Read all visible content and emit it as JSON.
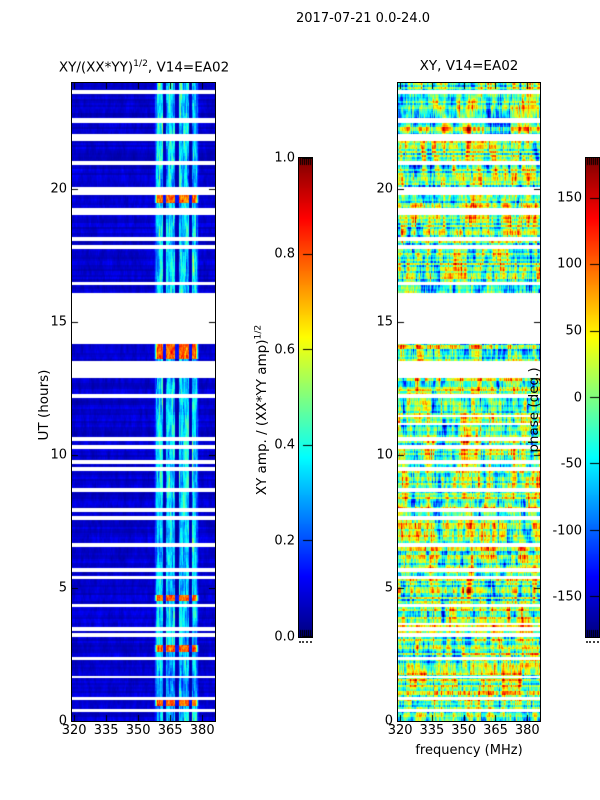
{
  "figure": {
    "title": "2017-07-21 0.0-24.0",
    "background_color": "#ffffff",
    "text_color": "#000000"
  },
  "chart_data": [
    {
      "type": "heatmap",
      "panel": "left",
      "title": {
        "prefix": "XY/(XX*YY)",
        "sup": "1/2",
        "suffix": ", V14=EA02"
      },
      "ylabel": "UT (hours)",
      "xlabel": "",
      "x_range_mhz": [
        319,
        386
      ],
      "x_ticks": [
        320,
        335,
        350,
        365,
        380
      ],
      "y_range_hours": [
        0,
        24
      ],
      "y_ticks": [
        0,
        5,
        10,
        15,
        20
      ],
      "colormap": "jet",
      "grid": false,
      "colorbar": {
        "label": {
          "prefix": "XY amp. / (XX*YY amp)",
          "sup": "1/2",
          "suffix": ""
        },
        "range": [
          0.0,
          1.0
        ],
        "ticks": [
          0.0,
          0.2,
          0.4,
          0.6,
          0.8,
          1.0
        ],
        "tick_format": 1
      },
      "description": "Normalized XY cross-hand amplitude vs frequency and UT; mostly low (~0.0-0.1, dark blue) with an enhanced RFI band near 358-378 MHz and white rows where data are missing.",
      "background_level": 0.05,
      "active_band_mhz": [
        357.5,
        378.5
      ],
      "band_notch_freqs_mhz": [
        362.4,
        368.3,
        374.6
      ],
      "enhanced_rows_ut": [
        [
          19.5,
          19.78
        ],
        [
          13.6,
          14.2
        ],
        [
          4.5,
          4.75
        ],
        [
          2.6,
          2.85
        ],
        [
          0.55,
          0.8
        ]
      ],
      "missing_time_gaps_ut": [
        [
          23.6,
          23.72
        ],
        [
          22.5,
          22.7
        ],
        [
          21.8,
          22.1
        ],
        [
          20.9,
          21.05
        ],
        [
          19.8,
          20.1
        ],
        [
          19.05,
          19.3
        ],
        [
          18.05,
          18.2
        ],
        [
          17.75,
          17.9
        ],
        [
          16.4,
          16.5
        ],
        [
          14.2,
          16.1
        ],
        [
          12.9,
          13.55
        ],
        [
          12.15,
          12.3
        ],
        [
          10.55,
          10.7
        ],
        [
          10.25,
          10.4
        ],
        [
          9.65,
          9.8
        ],
        [
          9.4,
          9.55
        ],
        [
          8.6,
          8.75
        ],
        [
          7.85,
          8.0
        ],
        [
          7.55,
          7.7
        ],
        [
          6.55,
          6.7
        ],
        [
          5.6,
          5.75
        ],
        [
          5.35,
          5.45
        ],
        [
          4.3,
          4.4
        ],
        [
          3.4,
          3.55
        ],
        [
          3.15,
          3.3
        ],
        [
          2.3,
          2.4
        ],
        [
          1.6,
          1.7
        ],
        [
          0.8,
          0.9
        ],
        [
          0.35,
          0.45
        ]
      ]
    },
    {
      "type": "heatmap",
      "panel": "right",
      "title": {
        "prefix": "XY, V14=EA02",
        "sup": "",
        "suffix": ""
      },
      "ylabel": "",
      "xlabel": "frequency (MHz)",
      "x_range_mhz": [
        319,
        386
      ],
      "x_ticks": [
        320,
        335,
        350,
        365,
        380
      ],
      "y_range_hours": [
        0,
        24
      ],
      "y_ticks": [
        0,
        5,
        10,
        15,
        20
      ],
      "colormap": "jet",
      "grid": false,
      "colorbar": {
        "label": {
          "prefix": "phase (deg.)",
          "sup": "",
          "suffix": ""
        },
        "range": [
          -180,
          180
        ],
        "ticks": [
          -150,
          -100,
          -50,
          0,
          50,
          100,
          150
        ],
        "tick_format": 0
      },
      "description": "XY cross-hand phase (degrees) vs frequency and UT; strongly mottled full-range phase structure across the whole band with the same missing-time white rows plus extra thin dropouts.",
      "missing_time_gaps_ut": [
        [
          23.6,
          23.72
        ],
        [
          22.5,
          22.7
        ],
        [
          21.8,
          22.1
        ],
        [
          20.9,
          21.05
        ],
        [
          19.8,
          20.1
        ],
        [
          19.05,
          19.3
        ],
        [
          18.05,
          18.2
        ],
        [
          17.75,
          17.9
        ],
        [
          16.4,
          16.5
        ],
        [
          14.2,
          16.1
        ],
        [
          12.9,
          13.55
        ],
        [
          12.15,
          12.3
        ],
        [
          10.55,
          10.7
        ],
        [
          10.25,
          10.4
        ],
        [
          9.65,
          9.8
        ],
        [
          9.4,
          9.55
        ],
        [
          8.6,
          8.75
        ],
        [
          7.85,
          8.0
        ],
        [
          7.55,
          7.7
        ],
        [
          6.55,
          6.7
        ],
        [
          5.6,
          5.75
        ],
        [
          5.35,
          5.45
        ],
        [
          4.3,
          4.4
        ],
        [
          3.4,
          3.55
        ],
        [
          3.15,
          3.3
        ],
        [
          2.3,
          2.4
        ],
        [
          1.6,
          1.7
        ],
        [
          0.8,
          0.9
        ],
        [
          0.35,
          0.45
        ]
      ]
    }
  ]
}
